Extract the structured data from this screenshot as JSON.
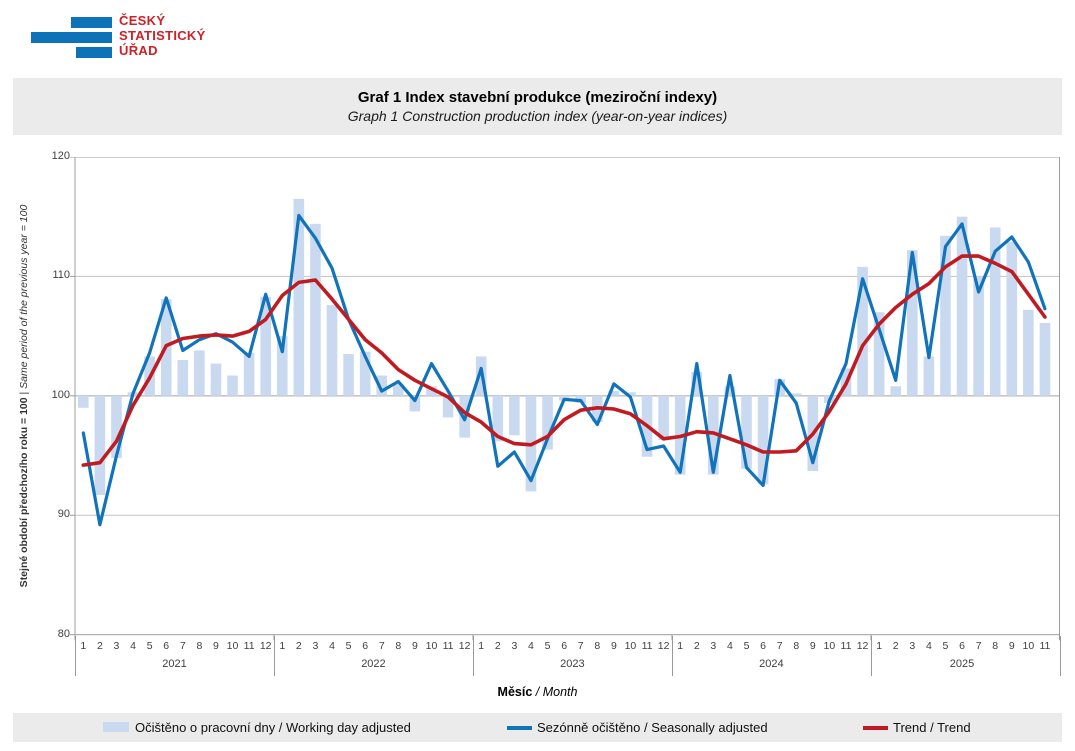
{
  "logo": {
    "line1": "ČESKÝ",
    "line2": "STATISTICKÝ",
    "line3": "ÚŘAD"
  },
  "header": {
    "title_cs": "Graf 1 Index stavební produkce (meziroční indexy)",
    "title_en": "Graph 1 Construction production index (year-on-year indices)"
  },
  "y_axis": {
    "title_cs": "Stejné období předchozího roku = 100",
    "separator": " | ",
    "title_en": "Same period of the previous year = 100",
    "ticks": [
      120,
      110,
      100,
      90,
      80
    ]
  },
  "x_axis": {
    "title_cs": "Měsíc",
    "title_en": "/ Month",
    "years": [
      {
        "label": "2021",
        "months": [
          "1",
          "2",
          "3",
          "4",
          "5",
          "6",
          "7",
          "8",
          "9",
          "10",
          "11",
          "12"
        ]
      },
      {
        "label": "2022",
        "months": [
          "1",
          "2",
          "3",
          "4",
          "5",
          "6",
          "7",
          "8",
          "9",
          "10",
          "11",
          "12"
        ]
      },
      {
        "label": "2023",
        "months": [
          "1",
          "2",
          "3",
          "4",
          "5",
          "6",
          "7",
          "8",
          "9",
          "10",
          "11",
          "12"
        ]
      },
      {
        "label": "2024",
        "months": [
          "1",
          "2",
          "3",
          "4",
          "5",
          "6",
          "7",
          "8",
          "9",
          "10",
          "11",
          "12"
        ]
      },
      {
        "label": "2025",
        "months": [
          "1",
          "2",
          "3",
          "4",
          "5",
          "6",
          "7",
          "8",
          "9",
          "10",
          "11"
        ]
      }
    ]
  },
  "legend": [
    {
      "label": "Očištěno o pracovní dny / Working day adjusted",
      "type": "bar"
    },
    {
      "label": "Sezónně očištěno / Seasonally adjusted",
      "type": "line"
    },
    {
      "label": "Trend / Trend",
      "type": "line"
    }
  ],
  "colors": {
    "bar_fill": "#c9d9f0",
    "seasonal_line": "#1173b9",
    "trend_line": "#bf1b21",
    "logo_blue": "#0e72b8",
    "logo_red": "#d02027",
    "band_bg": "#ebebeb",
    "grid": "#c3c3c3",
    "grid_100": "#a3a3a3",
    "plot_border": "#9c9c9c",
    "axis_text": "#404040"
  },
  "chart_data": {
    "type": "combo",
    "title": "Graf 1 Index stavební produkce (meziroční indexy) / Graph 1 Construction production index (year-on-year indices)",
    "xlabel": "Měsíc / Month",
    "ylabel": "Stejné období předchozího roku = 100 | Same period of the previous year = 100",
    "ylim": [
      80,
      120
    ],
    "baseline": 100,
    "grid": "horizontal",
    "legend_position": "bottom",
    "categories": [
      "2021-01",
      "2021-02",
      "2021-03",
      "2021-04",
      "2021-05",
      "2021-06",
      "2021-07",
      "2021-08",
      "2021-09",
      "2021-10",
      "2021-11",
      "2021-12",
      "2022-01",
      "2022-02",
      "2022-03",
      "2022-04",
      "2022-05",
      "2022-06",
      "2022-07",
      "2022-08",
      "2022-09",
      "2022-10",
      "2022-11",
      "2022-12",
      "2023-01",
      "2023-02",
      "2023-03",
      "2023-04",
      "2023-05",
      "2023-06",
      "2023-07",
      "2023-08",
      "2023-09",
      "2023-10",
      "2023-11",
      "2023-12",
      "2024-01",
      "2024-02",
      "2024-03",
      "2024-04",
      "2024-05",
      "2024-06",
      "2024-07",
      "2024-08",
      "2024-09",
      "2024-10",
      "2024-11",
      "2024-12",
      "2025-01",
      "2025-02",
      "2025-03",
      "2025-04",
      "2025-05",
      "2025-06",
      "2025-07",
      "2025-08",
      "2025-09",
      "2025-10",
      "2025-11"
    ],
    "series": [
      {
        "name": "Očištěno o pracovní dny / Working day adjusted",
        "type": "bar",
        "values": [
          99.0,
          91.7,
          94.8,
          100.3,
          103.3,
          108.1,
          103.0,
          103.8,
          102.7,
          101.7,
          103.6,
          108.3,
          105.0,
          116.5,
          114.4,
          107.6,
          103.5,
          103.7,
          101.7,
          101.0,
          98.7,
          100.8,
          98.2,
          96.5,
          103.3,
          96.2,
          96.7,
          92.0,
          95.5,
          99.6,
          99.4,
          97.8,
          100.4,
          100.3,
          94.9,
          96.3,
          93.4,
          102.0,
          93.4,
          100.8,
          93.9,
          92.6,
          101.4,
          100.2,
          93.7,
          99.4,
          102.3,
          110.8,
          107.0,
          100.8,
          112.2,
          103.3,
          113.4,
          115.0,
          110.0,
          114.1,
          112.9,
          107.2,
          106.1
        ]
      },
      {
        "name": "Sezónně očištěno / Seasonally adjusted",
        "type": "line",
        "values": [
          96.9,
          89.2,
          95.0,
          100.2,
          103.6,
          108.2,
          103.8,
          104.7,
          105.2,
          104.5,
          103.3,
          108.5,
          103.7,
          115.1,
          113.2,
          110.7,
          106.4,
          103.3,
          100.4,
          101.2,
          99.6,
          102.7,
          100.4,
          98.0,
          102.3,
          94.1,
          95.3,
          92.9,
          96.4,
          99.7,
          99.6,
          97.6,
          101.0,
          99.9,
          95.5,
          95.8,
          93.6,
          102.7,
          93.6,
          101.7,
          94.0,
          92.5,
          101.3,
          99.4,
          94.4,
          99.6,
          102.7,
          109.8,
          105.6,
          101.3,
          112.0,
          103.2,
          112.5,
          114.4,
          108.7,
          112.1,
          113.3,
          111.2,
          107.3
        ]
      },
      {
        "name": "Trend / Trend",
        "type": "line",
        "values": [
          94.2,
          94.4,
          96.2,
          99.2,
          101.5,
          104.2,
          104.8,
          105.0,
          105.1,
          105.0,
          105.4,
          106.4,
          108.4,
          109.5,
          109.7,
          108.1,
          106.4,
          104.7,
          103.6,
          102.2,
          101.3,
          100.6,
          99.9,
          98.6,
          97.8,
          96.6,
          96.0,
          95.9,
          96.6,
          98.0,
          98.8,
          99.0,
          98.9,
          98.5,
          97.5,
          96.4,
          96.6,
          97.0,
          96.9,
          96.4,
          95.9,
          95.3,
          95.3,
          95.4,
          96.8,
          98.7,
          101.0,
          104.2,
          106.0,
          107.4,
          108.5,
          109.4,
          110.8,
          111.7,
          111.7,
          111.1,
          110.4,
          108.5,
          106.6
        ]
      }
    ]
  }
}
